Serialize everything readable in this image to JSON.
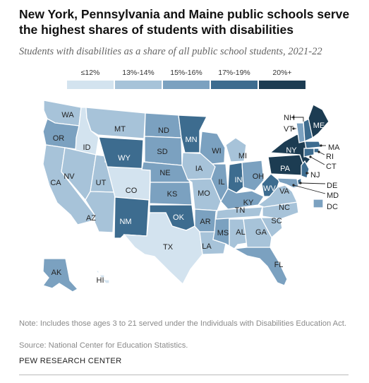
{
  "title": "New York, Pennsylvania and Maine public schools serve the highest shares of students with disabilities",
  "subtitle": "Students with disabilities as a share of all public school students, 2021-22",
  "legend": [
    {
      "label": "≤12%",
      "color": "#d3e3ef"
    },
    {
      "label": "13%-14%",
      "color": "#a7c3d9"
    },
    {
      "label": "15%-16%",
      "color": "#7ba1c0"
    },
    {
      "label": "17%-19%",
      "color": "#3d6c8f"
    },
    {
      "label": "20%+",
      "color": "#1c3c52"
    }
  ],
  "states": [
    {
      "abbr": "WA",
      "bin": 1
    },
    {
      "abbr": "OR",
      "bin": 2
    },
    {
      "abbr": "CA",
      "bin": 1
    },
    {
      "abbr": "ID",
      "bin": 0
    },
    {
      "abbr": "NV",
      "bin": 1
    },
    {
      "abbr": "UT",
      "bin": 1
    },
    {
      "abbr": "AZ",
      "bin": 1
    },
    {
      "abbr": "MT",
      "bin": 1
    },
    {
      "abbr": "WY",
      "bin": 3
    },
    {
      "abbr": "CO",
      "bin": 0
    },
    {
      "abbr": "NM",
      "bin": 3
    },
    {
      "abbr": "ND",
      "bin": 2
    },
    {
      "abbr": "SD",
      "bin": 2
    },
    {
      "abbr": "NE",
      "bin": 2
    },
    {
      "abbr": "KS",
      "bin": 2
    },
    {
      "abbr": "OK",
      "bin": 3
    },
    {
      "abbr": "TX",
      "bin": 0
    },
    {
      "abbr": "MN",
      "bin": 3
    },
    {
      "abbr": "IA",
      "bin": 1
    },
    {
      "abbr": "MO",
      "bin": 1
    },
    {
      "abbr": "AR",
      "bin": 2
    },
    {
      "abbr": "LA",
      "bin": 1
    },
    {
      "abbr": "WI",
      "bin": 2
    },
    {
      "abbr": "IL",
      "bin": 2
    },
    {
      "abbr": "MS",
      "bin": 2
    },
    {
      "abbr": "MI",
      "bin": 1
    },
    {
      "abbr": "IN",
      "bin": 3
    },
    {
      "abbr": "KY",
      "bin": 2
    },
    {
      "abbr": "TN",
      "bin": 1
    },
    {
      "abbr": "AL",
      "bin": 1
    },
    {
      "abbr": "OH",
      "bin": 2
    },
    {
      "abbr": "GA",
      "bin": 1
    },
    {
      "abbr": "FL",
      "bin": 2
    },
    {
      "abbr": "SC",
      "bin": 1
    },
    {
      "abbr": "NC",
      "bin": 1
    },
    {
      "abbr": "VA",
      "bin": 1
    },
    {
      "abbr": "WV",
      "bin": 3
    },
    {
      "abbr": "PA",
      "bin": 4
    },
    {
      "abbr": "NY",
      "bin": 4
    },
    {
      "abbr": "VT",
      "bin": 2
    },
    {
      "abbr": "NH",
      "bin": 3
    },
    {
      "abbr": "ME",
      "bin": 4
    },
    {
      "abbr": "MA",
      "bin": 3
    },
    {
      "abbr": "RI",
      "bin": 3
    },
    {
      "abbr": "CT",
      "bin": 3
    },
    {
      "abbr": "NJ",
      "bin": 3
    },
    {
      "abbr": "DE",
      "bin": 3
    },
    {
      "abbr": "MD",
      "bin": 2
    },
    {
      "abbr": "DC",
      "bin": 2
    },
    {
      "abbr": "AK",
      "bin": 2
    },
    {
      "abbr": "HI",
      "bin": 0
    }
  ],
  "note": "Note: Includes those ages 3 to 21 served under the Individuals with Disabilities Education Act.",
  "source": "Source: National Center for Education Statistics.",
  "credit": "PEW RESEARCH CENTER"
}
